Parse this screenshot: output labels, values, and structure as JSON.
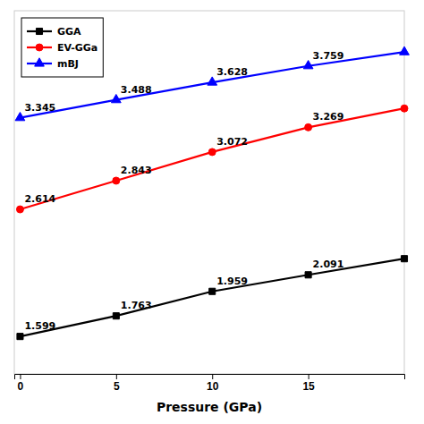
{
  "chart_data": {
    "type": "line",
    "x": [
      0,
      5,
      10,
      15,
      20
    ],
    "series": [
      {
        "name": "GGA",
        "color": "#000000",
        "marker": "square",
        "values": [
          1.599,
          1.763,
          1.959,
          2.091,
          2.22
        ]
      },
      {
        "name": "EV-GGa",
        "color": "#ff0000",
        "marker": "circle",
        "values": [
          2.614,
          2.843,
          3.072,
          3.269,
          3.42
        ]
      },
      {
        "name": "mBJ",
        "color": "#0000ff",
        "marker": "triangle",
        "values": [
          3.345,
          3.488,
          3.628,
          3.759,
          3.87
        ]
      }
    ],
    "xlabel": "Pressure (GPa)",
    "xlim": [
      -0.3,
      20
    ],
    "ylim": [
      1.3,
      4.2
    ],
    "xticks": [
      0,
      5,
      10,
      15
    ],
    "tick_labels": "x",
    "legend": "upper left",
    "annotations": [
      {
        "x": 0,
        "y": 1.599,
        "text": "1.599"
      },
      {
        "x": 5,
        "y": 1.763,
        "text": "1.763"
      },
      {
        "x": 10,
        "y": 1.959,
        "text": "1.959"
      },
      {
        "x": 15,
        "y": 2.091,
        "text": "2.091"
      },
      {
        "x": 0,
        "y": 2.614,
        "text": "2.614"
      },
      {
        "x": 5,
        "y": 2.843,
        "text": "2.843"
      },
      {
        "x": 10,
        "y": 3.072,
        "text": "3.072"
      },
      {
        "x": 15,
        "y": 3.269,
        "text": "3.269"
      },
      {
        "x": 0,
        "y": 3.345,
        "text": "3.345"
      },
      {
        "x": 5,
        "y": 3.488,
        "text": "3.488"
      },
      {
        "x": 10,
        "y": 3.628,
        "text": "3.628"
      },
      {
        "x": 15,
        "y": 3.759,
        "text": "3.759"
      }
    ]
  }
}
